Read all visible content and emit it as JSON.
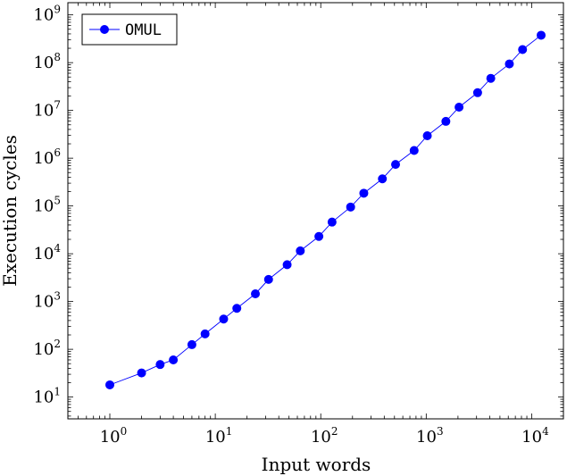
{
  "chart_data": {
    "type": "line",
    "xlabel": "Input words",
    "ylabel": "Execution cycles",
    "xscale": "log",
    "yscale": "log",
    "xlim": [
      0.4,
      20000
    ],
    "ylim": [
      3.5,
      1800000000
    ],
    "grid": false,
    "legend_position": "top-left",
    "x_tick_labels": [
      "10^0",
      "10^1",
      "10^2",
      "10^3",
      "10^4"
    ],
    "y_tick_labels": [
      "10^1",
      "10^2",
      "10^3",
      "10^4",
      "10^5",
      "10^6",
      "10^7",
      "10^8",
      "10^9"
    ],
    "series": [
      {
        "name": "OMUL",
        "color": "#0000ff",
        "marker": "circle",
        "x": [
          1,
          2,
          3,
          4,
          6,
          8,
          12,
          16,
          24,
          32,
          48,
          64,
          96,
          128,
          192,
          256,
          384,
          512,
          768,
          1024,
          1536,
          2048,
          3072,
          4096,
          6144,
          8192,
          12288
        ],
        "y": [
          18,
          32,
          48,
          60,
          125,
          210,
          430,
          720,
          1450,
          2900,
          5900,
          11500,
          23000,
          46000,
          95000,
          185000,
          370000,
          740000,
          1450000,
          2950000,
          5900000,
          11700000,
          23500000,
          47000000,
          94000000,
          188000000,
          375000000
        ]
      }
    ]
  }
}
